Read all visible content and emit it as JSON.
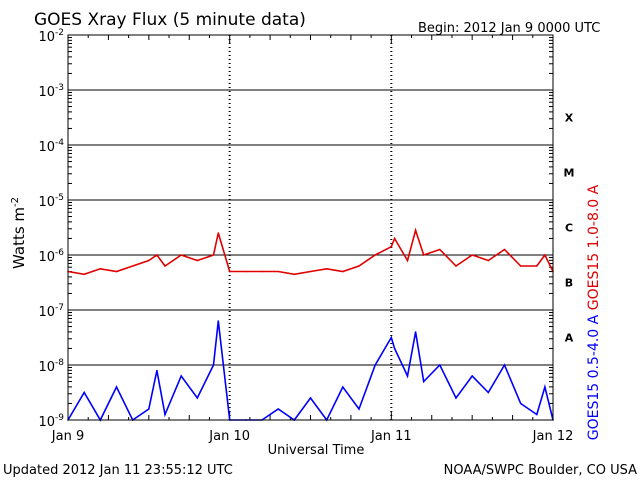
{
  "chart_data": {
    "type": "line",
    "title": "GOES Xray Flux (5 minute data)",
    "begin_label": "Begin:  2012 Jan 9 0000 UTC",
    "ylabel": "Watts m",
    "ylabel_sup": "-2",
    "xlabel": "Universal Time",
    "y_scale": "log",
    "ylim": [
      1e-09,
      0.01
    ],
    "y_ticks": [
      {
        "base": "10",
        "exp": "-2"
      },
      {
        "base": "10",
        "exp": "-3"
      },
      {
        "base": "10",
        "exp": "-4"
      },
      {
        "base": "10",
        "exp": "-5"
      },
      {
        "base": "10",
        "exp": "-6"
      },
      {
        "base": "10",
        "exp": "-7"
      },
      {
        "base": "10",
        "exp": "-8"
      },
      {
        "base": "10",
        "exp": "-9"
      }
    ],
    "x_ticks": [
      "Jan 9",
      "Jan 10",
      "Jan 11",
      "Jan 12"
    ],
    "x_range_days": [
      0,
      3
    ],
    "flare_classes": [
      {
        "label": "X",
        "exp": -4
      },
      {
        "label": "M",
        "exp": -5
      },
      {
        "label": "C",
        "exp": -6
      },
      {
        "label": "B",
        "exp": -7
      },
      {
        "label": "A",
        "exp": -8
      }
    ],
    "series": [
      {
        "name": "GOES15 1.0-8.0 A",
        "color": "#e00000",
        "x": [
          0,
          0.1,
          0.2,
          0.3,
          0.4,
          0.5,
          0.55,
          0.6,
          0.7,
          0.8,
          0.9,
          0.93,
          1.0,
          1.1,
          1.2,
          1.3,
          1.4,
          1.5,
          1.6,
          1.7,
          1.8,
          1.9,
          2.0,
          2.02,
          2.1,
          2.15,
          2.2,
          2.3,
          2.4,
          2.5,
          2.6,
          2.7,
          2.8,
          2.9,
          2.95,
          3.0
        ],
        "y_exp": [
          -6.3,
          -6.35,
          -6.25,
          -6.3,
          -6.2,
          -6.1,
          -6.0,
          -6.2,
          -6.0,
          -6.1,
          -6.0,
          -5.6,
          -6.3,
          -6.3,
          -6.3,
          -6.3,
          -6.35,
          -6.3,
          -6.25,
          -6.3,
          -6.2,
          -6.0,
          -5.85,
          -5.7,
          -6.1,
          -5.55,
          -6.0,
          -5.9,
          -6.2,
          -6.0,
          -6.1,
          -5.9,
          -6.2,
          -6.2,
          -6.0,
          -6.3
        ]
      },
      {
        "name": "GOES15 0.5-4.0 A",
        "color": "#0000ff",
        "x": [
          0,
          0.1,
          0.2,
          0.3,
          0.4,
          0.5,
          0.55,
          0.6,
          0.7,
          0.8,
          0.9,
          0.93,
          1.0,
          1.1,
          1.2,
          1.3,
          1.4,
          1.5,
          1.6,
          1.7,
          1.8,
          1.9,
          2.0,
          2.02,
          2.1,
          2.15,
          2.2,
          2.3,
          2.4,
          2.5,
          2.6,
          2.7,
          2.8,
          2.9,
          2.95,
          3.0
        ],
        "y_exp": [
          -9.0,
          -8.5,
          -9.0,
          -8.4,
          -9.0,
          -8.8,
          -8.1,
          -8.9,
          -8.2,
          -8.6,
          -8.0,
          -7.2,
          -9.0,
          -9.0,
          -9.0,
          -8.8,
          -9.0,
          -8.6,
          -9.0,
          -8.4,
          -8.8,
          -8.0,
          -7.5,
          -7.7,
          -8.2,
          -7.4,
          -8.3,
          -8.0,
          -8.6,
          -8.2,
          -8.5,
          -8.0,
          -8.7,
          -8.9,
          -8.4,
          -9.0
        ]
      }
    ]
  },
  "footer": {
    "updated": "Updated 2012 Jan 11 23:55:12 UTC",
    "source": "NOAA/SWPC Boulder, CO USA"
  }
}
